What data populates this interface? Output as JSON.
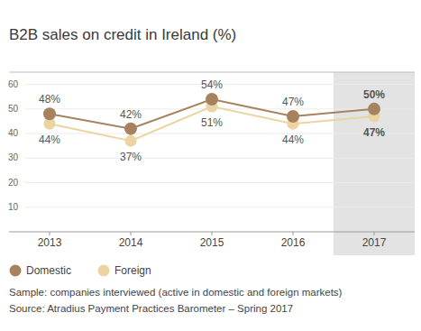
{
  "chart_data": {
    "type": "line",
    "title": "B2B sales on credit in Ireland (%)",
    "categories": [
      "2013",
      "2014",
      "2015",
      "2016",
      "2017"
    ],
    "series": [
      {
        "name": "Domestic",
        "color": "#a7825f",
        "values": [
          48,
          42,
          54,
          47,
          50
        ],
        "value_labels": [
          "48%",
          "42%",
          "54%",
          "47%",
          "50%"
        ],
        "marker": "circle"
      },
      {
        "name": "Foreign",
        "color": "#ecd4a2",
        "values": [
          44,
          37,
          51,
          44,
          47
        ],
        "value_labels": [
          "44%",
          "37%",
          "51%",
          "44%",
          "47%"
        ],
        "marker": "circle"
      }
    ],
    "ylim": [
      0,
      65
    ],
    "yticks": [
      10,
      20,
      30,
      40,
      50,
      60
    ],
    "grid": true,
    "data_labels": true,
    "legend": "bottom-left",
    "annotations": [
      "Sample: companies interviewed (active in domestic and foreign markets)",
      "Source: Atradius Payment Practices Barometer – Spring 2017"
    ]
  }
}
